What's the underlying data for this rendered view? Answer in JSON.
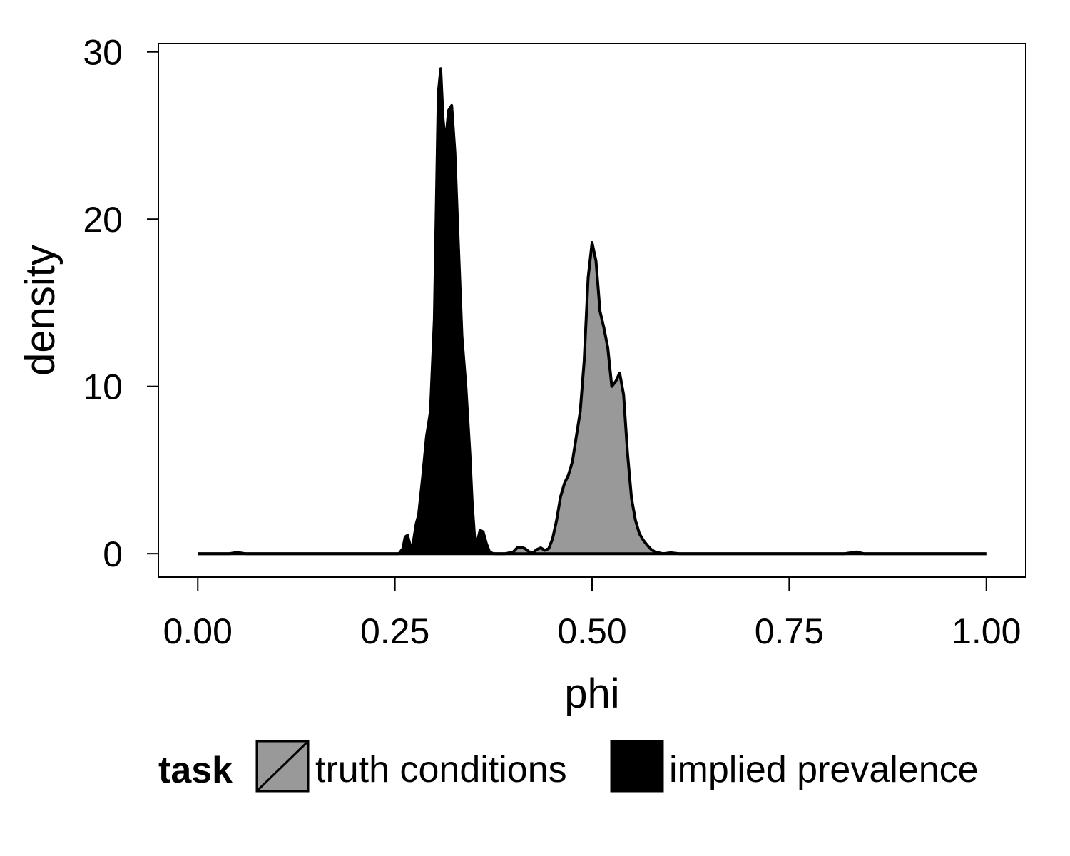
{
  "chart_data": {
    "type": "area",
    "title": "",
    "xlabel": "phi",
    "ylabel": "density",
    "xlim": [
      -0.05,
      1.05
    ],
    "ylim": [
      -1.4,
      30.5
    ],
    "x_ticks": [
      0,
      0.25,
      0.5,
      0.75,
      1.0
    ],
    "x_tick_labels": [
      "0.00",
      "0.25",
      "0.50",
      "0.75",
      "1.00"
    ],
    "y_ticks": [
      0,
      10,
      20,
      30
    ],
    "y_tick_labels": [
      "0",
      "10",
      "20",
      "30"
    ],
    "grid": false,
    "legend": {
      "title": "task",
      "placement": "bottom",
      "entries": [
        {
          "label": "truth conditions",
          "fill": "#999999"
        },
        {
          "label": "implied prevalence",
          "fill": "#000000"
        }
      ]
    },
    "series": [
      {
        "name": "truth conditions",
        "fill": "#999999",
        "points": [
          [
            0.0,
            0
          ],
          [
            0.04,
            0
          ],
          [
            0.05,
            0.08
          ],
          [
            0.06,
            0
          ],
          [
            0.39,
            0
          ],
          [
            0.4,
            0.1
          ],
          [
            0.405,
            0.35
          ],
          [
            0.41,
            0.4
          ],
          [
            0.415,
            0.3
          ],
          [
            0.42,
            0.12
          ],
          [
            0.425,
            0.05
          ],
          [
            0.43,
            0.25
          ],
          [
            0.435,
            0.35
          ],
          [
            0.44,
            0.2
          ],
          [
            0.445,
            0.3
          ],
          [
            0.45,
            0.9
          ],
          [
            0.455,
            2.0
          ],
          [
            0.46,
            3.4
          ],
          [
            0.465,
            4.2
          ],
          [
            0.47,
            4.7
          ],
          [
            0.475,
            5.5
          ],
          [
            0.48,
            7.0
          ],
          [
            0.485,
            8.5
          ],
          [
            0.49,
            11.5
          ],
          [
            0.495,
            16.5
          ],
          [
            0.5,
            18.6
          ],
          [
            0.505,
            17.5
          ],
          [
            0.51,
            14.5
          ],
          [
            0.515,
            13.5
          ],
          [
            0.52,
            12.3
          ],
          [
            0.525,
            10.0
          ],
          [
            0.53,
            10.3
          ],
          [
            0.535,
            10.8
          ],
          [
            0.54,
            9.5
          ],
          [
            0.545,
            6.0
          ],
          [
            0.55,
            3.3
          ],
          [
            0.555,
            2.0
          ],
          [
            0.56,
            1.2
          ],
          [
            0.565,
            0.8
          ],
          [
            0.57,
            0.5
          ],
          [
            0.575,
            0.25
          ],
          [
            0.58,
            0.1
          ],
          [
            0.59,
            0
          ],
          [
            0.6,
            0.06
          ],
          [
            0.61,
            0
          ],
          [
            0.82,
            0
          ],
          [
            0.835,
            0.1
          ],
          [
            0.845,
            0
          ],
          [
            1.0,
            0
          ]
        ]
      },
      {
        "name": "implied prevalence",
        "fill": "#000000",
        "points": [
          [
            0.0,
            0
          ],
          [
            0.255,
            0
          ],
          [
            0.26,
            0.3
          ],
          [
            0.263,
            1.0
          ],
          [
            0.266,
            1.1
          ],
          [
            0.27,
            0.4
          ],
          [
            0.273,
            0.6
          ],
          [
            0.277,
            1.8
          ],
          [
            0.28,
            2.3
          ],
          [
            0.285,
            4.5
          ],
          [
            0.29,
            7.0
          ],
          [
            0.295,
            8.5
          ],
          [
            0.3,
            14.0
          ],
          [
            0.305,
            27.5
          ],
          [
            0.308,
            29.0
          ],
          [
            0.311,
            26.0
          ],
          [
            0.314,
            24.5
          ],
          [
            0.318,
            26.5
          ],
          [
            0.322,
            26.8
          ],
          [
            0.326,
            24.0
          ],
          [
            0.33,
            19.0
          ],
          [
            0.335,
            13.0
          ],
          [
            0.34,
            10.0
          ],
          [
            0.345,
            6.0
          ],
          [
            0.348,
            3.0
          ],
          [
            0.351,
            1.0
          ],
          [
            0.354,
            0.6
          ],
          [
            0.358,
            1.4
          ],
          [
            0.362,
            1.3
          ],
          [
            0.366,
            0.6
          ],
          [
            0.37,
            0.1
          ],
          [
            0.375,
            0
          ],
          [
            1.0,
            0
          ]
        ]
      }
    ]
  }
}
